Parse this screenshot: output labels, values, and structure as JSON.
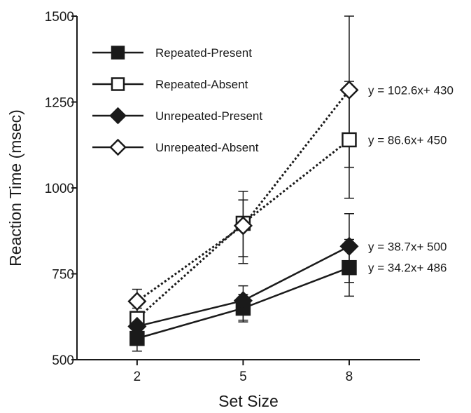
{
  "chart_data": {
    "type": "line",
    "title": "",
    "xlabel": "Set Size",
    "ylabel": "Reaction Time (msec)",
    "x": [
      2,
      5,
      8
    ],
    "xlim": [
      0.3,
      10.0
    ],
    "ylim": [
      500,
      1500
    ],
    "yticks": [
      500,
      750,
      1000,
      1250,
      1500
    ],
    "xticks": [
      2,
      5,
      8
    ],
    "grid": false,
    "legend_position": "top-left",
    "series": [
      {
        "name": "Repeated-Present",
        "marker": "square",
        "filled": true,
        "line_style": "solid",
        "values": [
          562,
          650,
          768
        ],
        "error": [
          [
            525,
            600
          ],
          [
            610,
            690
          ],
          [
            685,
            850
          ]
        ],
        "equation": "y = 34.2x+ 486"
      },
      {
        "name": "Repeated-Absent",
        "marker": "square",
        "filled": false,
        "line_style": "dotted",
        "values": [
          620,
          897,
          1140
        ],
        "error": [
          [
            590,
            650
          ],
          [
            800,
            990
          ],
          [
            970,
            1310
          ]
        ],
        "equation": "y = 86.6x+ 450"
      },
      {
        "name": "Unrepeated-Present",
        "marker": "diamond",
        "filled": true,
        "line_style": "solid",
        "values": [
          597,
          672,
          830
        ],
        "error": [
          [
            560,
            635
          ],
          [
            615,
            715
          ],
          [
            725,
            925
          ]
        ],
        "equation": "y = 38.7x+ 500"
      },
      {
        "name": "Unrepeated-Absent",
        "marker": "diamond",
        "filled": false,
        "line_style": "dotted",
        "values": [
          670,
          890,
          1285
        ],
        "error": [
          [
            635,
            705
          ],
          [
            780,
            965
          ],
          [
            1060,
            1500
          ]
        ],
        "equation": "y = 102.6x+ 430"
      }
    ]
  }
}
